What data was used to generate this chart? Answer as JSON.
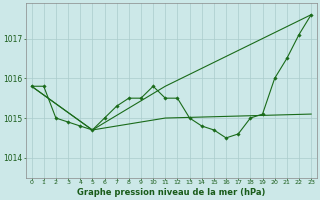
{
  "background_color": "#cce8e8",
  "grid_color": "#aacccc",
  "line_color": "#1a6b1a",
  "title": "Graphe pression niveau de la mer (hPa)",
  "xlim": [
    -0.5,
    23.5
  ],
  "ylim": [
    1013.5,
    1017.9
  ],
  "yticks": [
    1014,
    1015,
    1016,
    1017
  ],
  "xticks": [
    0,
    1,
    2,
    3,
    4,
    5,
    6,
    7,
    8,
    9,
    10,
    11,
    12,
    13,
    14,
    15,
    16,
    17,
    18,
    19,
    20,
    21,
    22,
    23
  ],
  "series": [
    {
      "x": [
        0,
        1,
        2,
        3,
        4,
        5,
        6,
        7,
        8,
        9,
        10,
        11,
        12,
        13,
        14,
        15,
        16,
        17,
        18,
        19,
        20,
        21,
        22,
        23
      ],
      "y": [
        1015.8,
        1015.8,
        1015.0,
        1014.9,
        1014.8,
        1014.7,
        1015.0,
        1015.3,
        1015.5,
        1015.5,
        1015.8,
        1015.5,
        1015.5,
        1015.0,
        1014.8,
        1014.7,
        1014.5,
        1014.6,
        1015.0,
        1015.1,
        1016.0,
        1016.5,
        1017.1,
        1017.6
      ],
      "marker": "D",
      "markersize": 1.8,
      "linewidth": 0.8
    },
    {
      "x": [
        0,
        5,
        11,
        23
      ],
      "y": [
        1015.8,
        1014.7,
        1015.8,
        1017.6
      ],
      "marker": null,
      "linewidth": 0.8
    },
    {
      "x": [
        0,
        5,
        11,
        23
      ],
      "y": [
        1015.8,
        1014.7,
        1015.0,
        1015.1
      ],
      "marker": null,
      "linewidth": 0.8
    }
  ],
  "title_fontsize": 6.0,
  "tick_fontsize": 4.5,
  "ytick_fontsize": 5.5
}
